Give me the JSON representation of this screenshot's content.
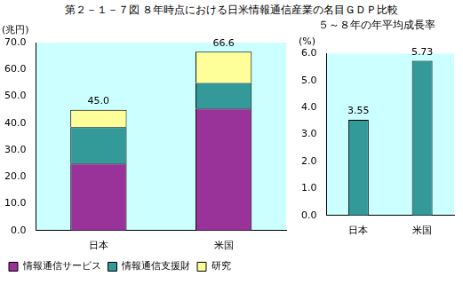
{
  "title": "第２－１－７図 ８年時点における日米情報通信産業の名目ＧＤＰ比較",
  "chart_data": [
    {
      "type": "bar",
      "ylabel": "(兆円)",
      "categories": [
        "日本",
        "米国"
      ],
      "series": [
        {
          "name": "情報通信サービス",
          "color": "#993399",
          "values": [
            25.0,
            45.5
          ]
        },
        {
          "name": "情報通信支援財",
          "color": "#339999",
          "values": [
            13.5,
            9.5
          ]
        },
        {
          "name": "研究",
          "color": "#ffff99",
          "values": [
            6.5,
            11.6
          ]
        }
      ],
      "totals": [
        45.0,
        66.6
      ],
      "total_labels": [
        "45.0",
        "66.6"
      ],
      "stacked": true,
      "ylim": [
        0,
        70
      ],
      "yticks": [
        {
          "value": 0,
          "label": "0.0"
        },
        {
          "value": 10,
          "label": "10.0"
        },
        {
          "value": 20,
          "label": "20.0"
        },
        {
          "value": 30,
          "label": "30.0"
        },
        {
          "value": 40,
          "label": "40.0"
        },
        {
          "value": 50,
          "label": "50.0"
        },
        {
          "value": 60,
          "label": "60.0"
        },
        {
          "value": 70,
          "label": "70.0"
        }
      ],
      "grid": false,
      "legend": "bottom"
    },
    {
      "type": "bar",
      "title": "５～８年の年平均成長率",
      "ylabel": "(%)",
      "categories": [
        "日本",
        "米国"
      ],
      "values": [
        3.55,
        5.73
      ],
      "color": "#339999",
      "data_labels": true,
      "ylim": [
        0,
        6
      ],
      "yticks": [
        {
          "value": 0,
          "label": "0.0"
        },
        {
          "value": 1,
          "label": "1.0"
        },
        {
          "value": 2,
          "label": "2.0"
        },
        {
          "value": 3,
          "label": "3.0"
        },
        {
          "value": 4,
          "label": "4.0"
        },
        {
          "value": 5,
          "label": "5.0"
        },
        {
          "value": 6,
          "label": "6.0"
        }
      ],
      "grid": false
    }
  ]
}
